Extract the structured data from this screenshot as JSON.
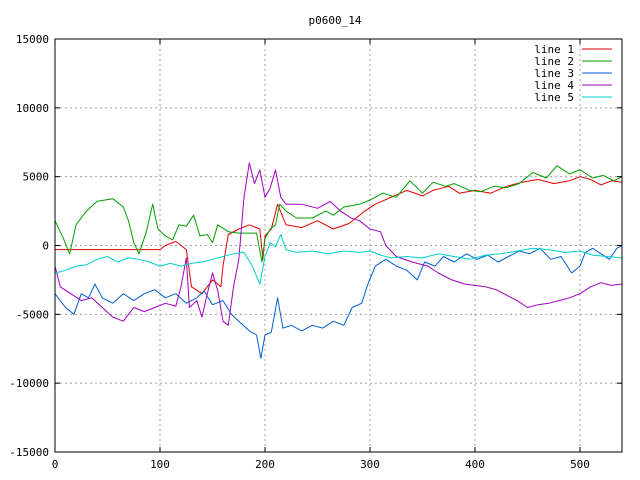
{
  "chart_data": {
    "type": "line",
    "title": "p0600_14",
    "xlabel": "",
    "ylabel": "",
    "xlim": [
      0,
      540
    ],
    "ylim": [
      -15000,
      15000
    ],
    "xticks": [
      0,
      100,
      200,
      300,
      400,
      500
    ],
    "yticks": [
      -15000,
      -10000,
      -5000,
      0,
      5000,
      10000,
      15000
    ],
    "grid": true,
    "legend_position": "top-right",
    "series": [
      {
        "name": "line 1",
        "color": "#e00000",
        "points": [
          [
            0,
            -300
          ],
          [
            100,
            -300
          ],
          [
            105,
            0
          ],
          [
            115,
            300
          ],
          [
            125,
            -300
          ],
          [
            130,
            -3000
          ],
          [
            140,
            -3500
          ],
          [
            150,
            -2500
          ],
          [
            158,
            -3000
          ],
          [
            160,
            -1500
          ],
          [
            165,
            800
          ],
          [
            175,
            1200
          ],
          [
            185,
            1500
          ],
          [
            195,
            1200
          ],
          [
            198,
            -1000
          ],
          [
            200,
            700
          ],
          [
            206,
            1200
          ],
          [
            212,
            3000
          ],
          [
            220,
            1500
          ],
          [
            235,
            1300
          ],
          [
            250,
            1800
          ],
          [
            265,
            1200
          ],
          [
            280,
            1600
          ],
          [
            295,
            2500
          ],
          [
            305,
            3000
          ],
          [
            320,
            3500
          ],
          [
            335,
            4000
          ],
          [
            350,
            3600
          ],
          [
            360,
            4000
          ],
          [
            375,
            4300
          ],
          [
            385,
            3800
          ],
          [
            400,
            4000
          ],
          [
            415,
            3800
          ],
          [
            430,
            4300
          ],
          [
            445,
            4600
          ],
          [
            460,
            4800
          ],
          [
            475,
            4500
          ],
          [
            490,
            4700
          ],
          [
            500,
            5000
          ],
          [
            510,
            4800
          ],
          [
            520,
            4400
          ],
          [
            530,
            4700
          ],
          [
            540,
            4600
          ]
        ]
      },
      {
        "name": "line 2",
        "color": "#00a000",
        "points": [
          [
            0,
            1800
          ],
          [
            8,
            500
          ],
          [
            14,
            -600
          ],
          [
            20,
            1500
          ],
          [
            30,
            2500
          ],
          [
            40,
            3200
          ],
          [
            55,
            3400
          ],
          [
            65,
            2800
          ],
          [
            70,
            1800
          ],
          [
            75,
            200
          ],
          [
            80,
            -600
          ],
          [
            87,
            1000
          ],
          [
            93,
            3000
          ],
          [
            98,
            1200
          ],
          [
            105,
            700
          ],
          [
            112,
            400
          ],
          [
            118,
            1500
          ],
          [
            125,
            1400
          ],
          [
            132,
            2200
          ],
          [
            138,
            700
          ],
          [
            145,
            800
          ],
          [
            150,
            200
          ],
          [
            155,
            1500
          ],
          [
            165,
            1000
          ],
          [
            175,
            900
          ],
          [
            185,
            900
          ],
          [
            192,
            900
          ],
          [
            197,
            -1200
          ],
          [
            200,
            500
          ],
          [
            205,
            1200
          ],
          [
            210,
            1500
          ],
          [
            214,
            3000
          ],
          [
            220,
            2500
          ],
          [
            230,
            2000
          ],
          [
            245,
            2000
          ],
          [
            258,
            2500
          ],
          [
            265,
            2200
          ],
          [
            275,
            2800
          ],
          [
            290,
            3000
          ],
          [
            300,
            3300
          ],
          [
            312,
            3800
          ],
          [
            325,
            3500
          ],
          [
            338,
            4700
          ],
          [
            350,
            3800
          ],
          [
            360,
            4600
          ],
          [
            372,
            4300
          ],
          [
            380,
            4500
          ],
          [
            395,
            4000
          ],
          [
            405,
            3900
          ],
          [
            418,
            4300
          ],
          [
            430,
            4200
          ],
          [
            442,
            4500
          ],
          [
            455,
            5300
          ],
          [
            468,
            4900
          ],
          [
            478,
            5800
          ],
          [
            490,
            5200
          ],
          [
            500,
            5500
          ],
          [
            512,
            4900
          ],
          [
            522,
            5100
          ],
          [
            532,
            4700
          ],
          [
            540,
            5000
          ]
        ]
      },
      {
        "name": "line 3",
        "color": "#0060d0",
        "points": [
          [
            0,
            -3500
          ],
          [
            10,
            -4500
          ],
          [
            18,
            -5000
          ],
          [
            25,
            -3500
          ],
          [
            32,
            -3800
          ],
          [
            38,
            -2800
          ],
          [
            45,
            -3800
          ],
          [
            55,
            -4200
          ],
          [
            65,
            -3500
          ],
          [
            75,
            -4000
          ],
          [
            85,
            -3500
          ],
          [
            95,
            -3200
          ],
          [
            105,
            -3800
          ],
          [
            115,
            -3500
          ],
          [
            125,
            -4200
          ],
          [
            135,
            -3800
          ],
          [
            142,
            -3300
          ],
          [
            150,
            -4300
          ],
          [
            160,
            -4000
          ],
          [
            168,
            -5000
          ],
          [
            175,
            -5500
          ],
          [
            185,
            -6200
          ],
          [
            192,
            -6500
          ],
          [
            196,
            -8200
          ],
          [
            200,
            -6500
          ],
          [
            206,
            -6300
          ],
          [
            212,
            -3800
          ],
          [
            217,
            -6000
          ],
          [
            225,
            -5800
          ],
          [
            235,
            -6200
          ],
          [
            245,
            -5800
          ],
          [
            255,
            -6000
          ],
          [
            265,
            -5500
          ],
          [
            275,
            -5800
          ],
          [
            283,
            -4500
          ],
          [
            292,
            -4200
          ],
          [
            298,
            -2800
          ],
          [
            305,
            -1500
          ],
          [
            315,
            -1000
          ],
          [
            325,
            -1500
          ],
          [
            335,
            -1800
          ],
          [
            345,
            -2500
          ],
          [
            352,
            -1200
          ],
          [
            362,
            -1500
          ],
          [
            370,
            -800
          ],
          [
            380,
            -1200
          ],
          [
            392,
            -600
          ],
          [
            402,
            -1000
          ],
          [
            412,
            -700
          ],
          [
            422,
            -1200
          ],
          [
            432,
            -800
          ],
          [
            442,
            -400
          ],
          [
            452,
            -600
          ],
          [
            462,
            -200
          ],
          [
            472,
            -1000
          ],
          [
            482,
            -800
          ],
          [
            492,
            -2000
          ],
          [
            500,
            -1500
          ],
          [
            505,
            -500
          ],
          [
            512,
            -200
          ],
          [
            520,
            -600
          ],
          [
            528,
            -1000
          ],
          [
            535,
            -200
          ],
          [
            540,
            0
          ]
        ]
      },
      {
        "name": "line 4",
        "color": "#a000c0",
        "points": [
          [
            0,
            -1500
          ],
          [
            5,
            -3000
          ],
          [
            15,
            -3500
          ],
          [
            25,
            -4000
          ],
          [
            35,
            -3800
          ],
          [
            45,
            -4500
          ],
          [
            55,
            -5200
          ],
          [
            65,
            -5500
          ],
          [
            75,
            -4500
          ],
          [
            85,
            -4800
          ],
          [
            95,
            -4500
          ],
          [
            105,
            -4200
          ],
          [
            115,
            -4400
          ],
          [
            120,
            -3000
          ],
          [
            125,
            -900
          ],
          [
            128,
            -4500
          ],
          [
            135,
            -4000
          ],
          [
            140,
            -5200
          ],
          [
            145,
            -3500
          ],
          [
            150,
            -2000
          ],
          [
            155,
            -3300
          ],
          [
            160,
            -5500
          ],
          [
            165,
            -5800
          ],
          [
            170,
            -3000
          ],
          [
            175,
            -1000
          ],
          [
            180,
            3500
          ],
          [
            185,
            6000
          ],
          [
            190,
            4500
          ],
          [
            195,
            5500
          ],
          [
            200,
            3500
          ],
          [
            205,
            4200
          ],
          [
            210,
            5500
          ],
          [
            215,
            3500
          ],
          [
            220,
            3000
          ],
          [
            235,
            3000
          ],
          [
            250,
            2700
          ],
          [
            262,
            3200
          ],
          [
            272,
            2500
          ],
          [
            282,
            2000
          ],
          [
            290,
            1800
          ],
          [
            300,
            1200
          ],
          [
            310,
            1000
          ],
          [
            315,
            0
          ],
          [
            325,
            -800
          ],
          [
            340,
            -1200
          ],
          [
            355,
            -1500
          ],
          [
            365,
            -2000
          ],
          [
            378,
            -2500
          ],
          [
            390,
            -2800
          ],
          [
            400,
            -2900
          ],
          [
            410,
            -3000
          ],
          [
            420,
            -3200
          ],
          [
            430,
            -3600
          ],
          [
            440,
            -4000
          ],
          [
            450,
            -4500
          ],
          [
            460,
            -4300
          ],
          [
            470,
            -4200
          ],
          [
            480,
            -4000
          ],
          [
            490,
            -3800
          ],
          [
            500,
            -3500
          ],
          [
            510,
            -3000
          ],
          [
            520,
            -2700
          ],
          [
            530,
            -2900
          ],
          [
            540,
            -2800
          ]
        ]
      },
      {
        "name": "line 5",
        "color": "#00d0d0",
        "points": [
          [
            0,
            -2000
          ],
          [
            10,
            -1800
          ],
          [
            20,
            -1500
          ],
          [
            30,
            -1400
          ],
          [
            40,
            -1000
          ],
          [
            50,
            -800
          ],
          [
            60,
            -1200
          ],
          [
            70,
            -900
          ],
          [
            80,
            -1000
          ],
          [
            90,
            -1200
          ],
          [
            100,
            -1500
          ],
          [
            110,
            -1300
          ],
          [
            120,
            -1500
          ],
          [
            130,
            -1300
          ],
          [
            140,
            -1200
          ],
          [
            150,
            -1000
          ],
          [
            160,
            -800
          ],
          [
            170,
            -600
          ],
          [
            180,
            -500
          ],
          [
            188,
            -1500
          ],
          [
            195,
            -2800
          ],
          [
            200,
            -800
          ],
          [
            205,
            200
          ],
          [
            210,
            -100
          ],
          [
            215,
            800
          ],
          [
            220,
            -300
          ],
          [
            230,
            -500
          ],
          [
            245,
            -400
          ],
          [
            260,
            -600
          ],
          [
            275,
            -400
          ],
          [
            290,
            -500
          ],
          [
            300,
            -400
          ],
          [
            310,
            -700
          ],
          [
            320,
            -900
          ],
          [
            335,
            -800
          ],
          [
            350,
            -900
          ],
          [
            365,
            -600
          ],
          [
            380,
            -800
          ],
          [
            395,
            -1000
          ],
          [
            410,
            -700
          ],
          [
            425,
            -600
          ],
          [
            440,
            -400
          ],
          [
            455,
            -200
          ],
          [
            470,
            -300
          ],
          [
            485,
            -500
          ],
          [
            500,
            -400
          ],
          [
            512,
            -700
          ],
          [
            525,
            -800
          ],
          [
            540,
            -900
          ]
        ]
      }
    ]
  }
}
